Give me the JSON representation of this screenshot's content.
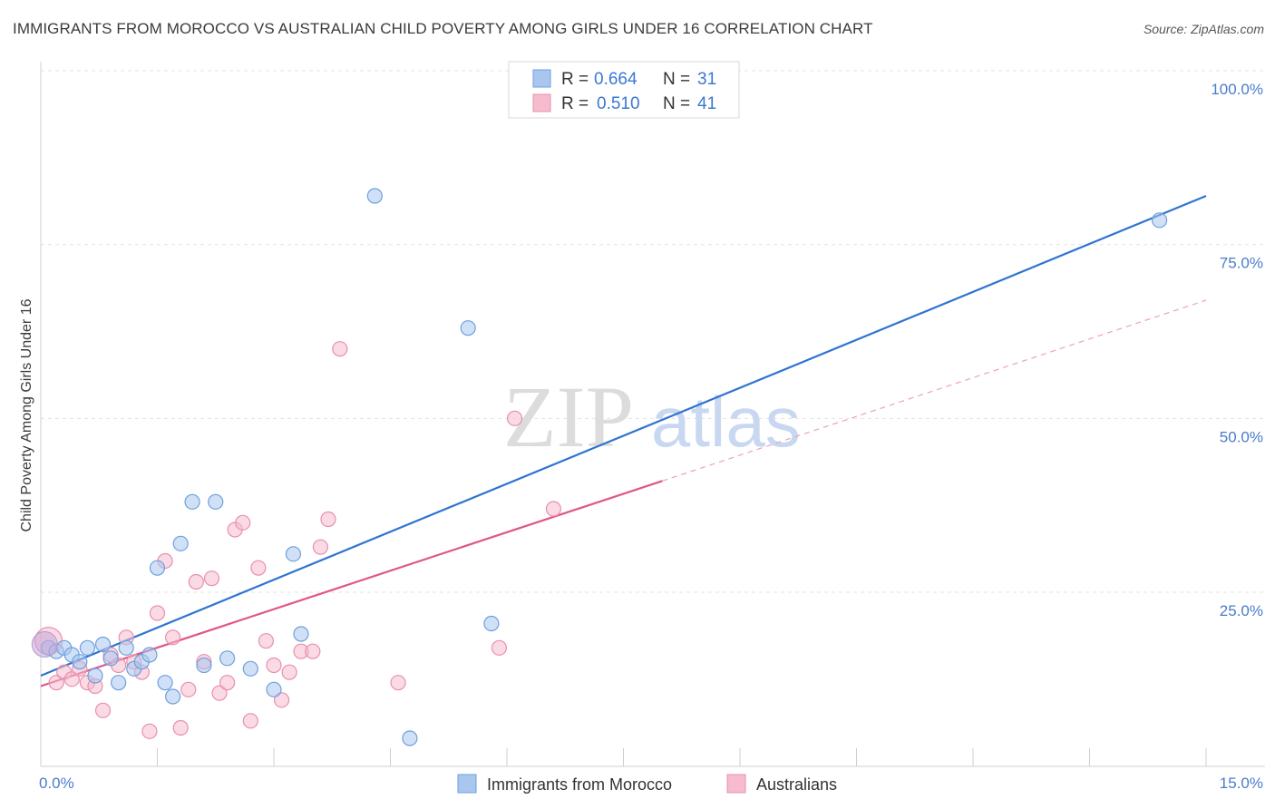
{
  "header": {
    "title": "IMMIGRANTS FROM MOROCCO VS AUSTRALIAN CHILD POVERTY AMONG GIRLS UNDER 16 CORRELATION CHART",
    "source": "Source: ZipAtlas.com"
  },
  "watermark": {
    "part1": "ZIP",
    "part2": "atlas"
  },
  "legend_top": [
    {
      "r_label": "R =",
      "r_value": "0.664",
      "n_label": "N =",
      "n_value": "31"
    },
    {
      "r_label": "R =",
      "r_value": "0.510",
      "n_label": "N =",
      "n_value": "41"
    }
  ],
  "chart_data": {
    "type": "scatter",
    "title": "IMMIGRANTS FROM MOROCCO VS AUSTRALIAN CHILD POVERTY AMONG GIRLS UNDER 16 CORRELATION CHART",
    "xlabel": "",
    "ylabel": "Child Poverty Among Girls Under 16",
    "xlim": [
      0,
      15
    ],
    "ylim": [
      0,
      100
    ],
    "x_tick_labels": [
      "0.0%",
      "15.0%"
    ],
    "y_tick_labels": [
      "100.0%",
      "75.0%",
      "50.0%",
      "25.0%"
    ],
    "y_tick_values": [
      100,
      75,
      50,
      25
    ],
    "grid": true,
    "legend_position": "top-center",
    "series": [
      {
        "name": "Immigrants from Morocco",
        "color": "#a9c7ee",
        "edge": "#6f9fdc",
        "line_color": "#2f74cf",
        "trend": {
          "x0": 0,
          "y0": 13,
          "x1": 15,
          "y1": 82,
          "dashed_after": null
        },
        "points": [
          [
            0.1,
            17
          ],
          [
            0.2,
            16.5
          ],
          [
            0.3,
            17
          ],
          [
            0.4,
            16
          ],
          [
            0.5,
            15
          ],
          [
            0.6,
            17
          ],
          [
            0.7,
            13
          ],
          [
            0.8,
            17.5
          ],
          [
            0.9,
            15.5
          ],
          [
            1.0,
            12
          ],
          [
            1.1,
            17
          ],
          [
            1.2,
            14
          ],
          [
            1.3,
            15
          ],
          [
            1.4,
            16
          ],
          [
            1.5,
            28.5
          ],
          [
            1.6,
            12
          ],
          [
            1.7,
            10
          ],
          [
            1.8,
            32
          ],
          [
            1.95,
            38
          ],
          [
            2.1,
            14.5
          ],
          [
            2.25,
            38
          ],
          [
            2.4,
            15.5
          ],
          [
            2.7,
            14
          ],
          [
            3.0,
            11
          ],
          [
            3.25,
            30.5
          ],
          [
            3.35,
            19
          ],
          [
            4.3,
            82
          ],
          [
            4.75,
            4
          ],
          [
            5.5,
            63
          ],
          [
            5.8,
            20.5
          ],
          [
            14.4,
            78.5
          ]
        ]
      },
      {
        "name": "Australians",
        "color": "#f6bccd",
        "edge": "#e890ab",
        "line_color": "#e0578a",
        "trend": {
          "x0": 0,
          "y0": 11.5,
          "x1": 8.0,
          "y1": 41,
          "dashed_to_x": 15,
          "dashed_to_y": 67
        },
        "points": [
          [
            0.1,
            18
          ],
          [
            0.2,
            12
          ],
          [
            0.3,
            13.5
          ],
          [
            0.4,
            12.5
          ],
          [
            0.5,
            14
          ],
          [
            0.6,
            12
          ],
          [
            0.7,
            11.5
          ],
          [
            0.8,
            8
          ],
          [
            0.9,
            16
          ],
          [
            1.0,
            14.5
          ],
          [
            1.1,
            18.5
          ],
          [
            1.2,
            15
          ],
          [
            1.3,
            13.5
          ],
          [
            1.4,
            5
          ],
          [
            1.5,
            22
          ],
          [
            1.6,
            29.5
          ],
          [
            1.7,
            18.5
          ],
          [
            1.8,
            5.5
          ],
          [
            1.9,
            11
          ],
          [
            2.0,
            26.5
          ],
          [
            2.1,
            15
          ],
          [
            2.2,
            27
          ],
          [
            2.3,
            10.5
          ],
          [
            2.4,
            12
          ],
          [
            2.5,
            34
          ],
          [
            2.6,
            35
          ],
          [
            2.7,
            6.5
          ],
          [
            2.8,
            28.5
          ],
          [
            2.9,
            18
          ],
          [
            3.0,
            14.5
          ],
          [
            3.1,
            9.5
          ],
          [
            3.2,
            13.5
          ],
          [
            3.35,
            16.5
          ],
          [
            3.5,
            16.5
          ],
          [
            3.6,
            31.5
          ],
          [
            3.7,
            35.5
          ],
          [
            3.85,
            60
          ],
          [
            4.6,
            12
          ],
          [
            5.9,
            17
          ],
          [
            6.1,
            50
          ],
          [
            6.6,
            37
          ]
        ]
      }
    ]
  },
  "legend_bottom": [
    {
      "label": "Immigrants from Morocco"
    },
    {
      "label": "Australians"
    }
  ]
}
